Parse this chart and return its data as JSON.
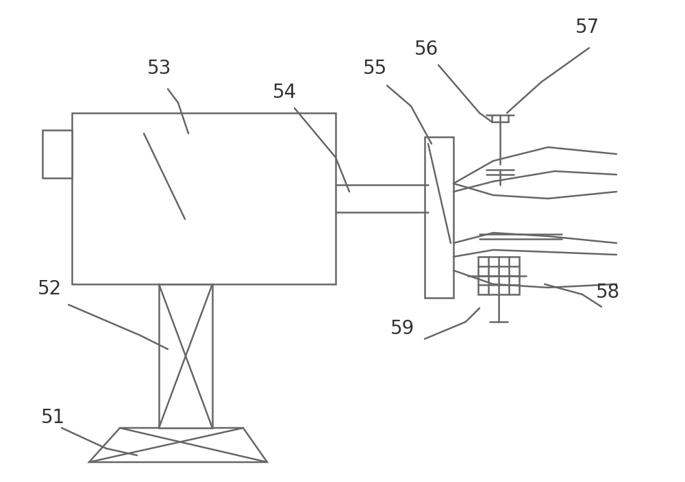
{
  "line_color": "#666666",
  "lw": 1.8,
  "label_fontsize": 20,
  "fig_w": 10.0,
  "fig_h": 7.04,
  "dpi": 100,
  "xlim": [
    0,
    1000
  ],
  "ylim": [
    0,
    704
  ]
}
